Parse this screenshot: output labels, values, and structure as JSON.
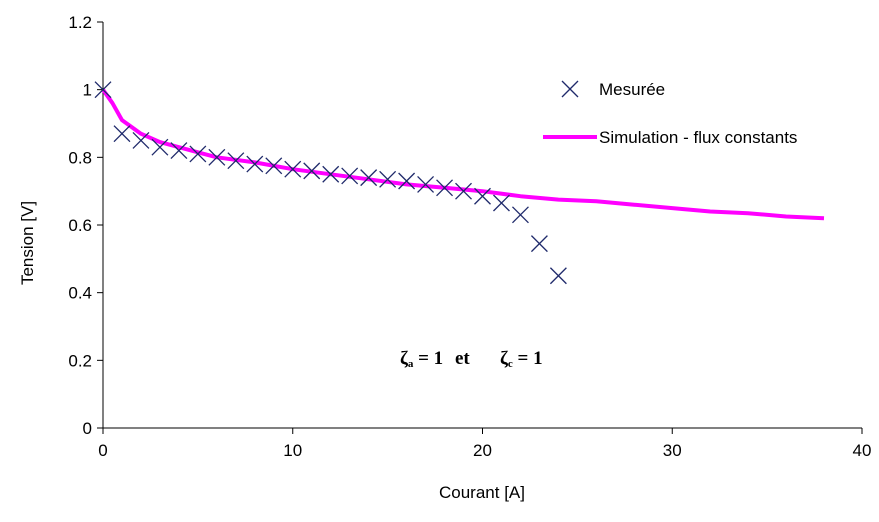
{
  "chart_data": {
    "type": "scatter",
    "title": "",
    "xlabel": "Courant [A]",
    "ylabel": "Tension [V]",
    "xlim": [
      0,
      40
    ],
    "ylim": [
      0,
      1.2
    ],
    "xticks": [
      "0",
      "10",
      "20",
      "30",
      "40"
    ],
    "yticks": [
      "0",
      "0.2",
      "0.4",
      "0.6",
      "0.8",
      "1",
      "1.2"
    ],
    "grid": false,
    "legend": "right",
    "series": [
      {
        "name": "Mesurée",
        "kind": "scatter",
        "marker": "x",
        "color": "#1f2a6b",
        "x": [
          0,
          1,
          2,
          3,
          4,
          5,
          6,
          7,
          8,
          9,
          10,
          11,
          12,
          13,
          14,
          15,
          16,
          17,
          18,
          19,
          20,
          21,
          22,
          23,
          24
        ],
        "y": [
          1.0,
          0.87,
          0.85,
          0.83,
          0.82,
          0.81,
          0.8,
          0.79,
          0.78,
          0.775,
          0.765,
          0.76,
          0.75,
          0.745,
          0.74,
          0.735,
          0.73,
          0.72,
          0.71,
          0.7,
          0.685,
          0.665,
          0.63,
          0.545,
          0.45
        ]
      },
      {
        "name": "Simulation - flux constants",
        "kind": "line",
        "color": "#ff00ff",
        "x": [
          0,
          0.5,
          1,
          2,
          3,
          4,
          5,
          6,
          8,
          10,
          12,
          14,
          16,
          18,
          20,
          22,
          24,
          26,
          28,
          30,
          32,
          34,
          36,
          38
        ],
        "y": [
          1.0,
          0.96,
          0.91,
          0.87,
          0.845,
          0.83,
          0.815,
          0.8,
          0.785,
          0.765,
          0.75,
          0.735,
          0.72,
          0.71,
          0.7,
          0.685,
          0.675,
          0.67,
          0.66,
          0.65,
          0.64,
          0.635,
          0.625,
          0.62
        ]
      }
    ],
    "annotation": {
      "left_symbol": "ζ",
      "left_sub": "a",
      "left_rest": " = 1",
      "middle": "et",
      "right_symbol": "ζ",
      "right_sub": "c",
      "right_rest": " = 1"
    }
  }
}
